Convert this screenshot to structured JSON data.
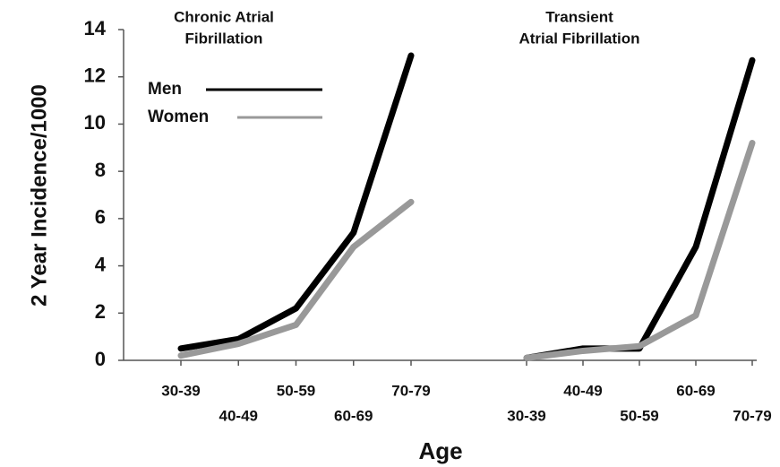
{
  "axis_labels": {
    "y": "2 Year Incidence/1000",
    "x": "Age"
  },
  "chart_data": [
    {
      "type": "line",
      "title": [
        "Chronic Atrial",
        "Fibrillation"
      ],
      "categories": [
        "30-39",
        "40-49",
        "50-59",
        "60-69",
        "70-79"
      ],
      "series": [
        {
          "name": "Men",
          "color": "#000000",
          "values": [
            0.5,
            0.9,
            2.2,
            5.4,
            12.9
          ]
        },
        {
          "name": "Women",
          "color": "#999999",
          "values": [
            0.2,
            0.7,
            1.5,
            4.8,
            6.7
          ]
        }
      ],
      "ylim": [
        0,
        14
      ],
      "yticks": [
        0,
        2,
        4,
        6,
        8,
        10,
        12,
        14
      ]
    },
    {
      "type": "line",
      "title": [
        "Transient",
        "Atrial Fibrillation"
      ],
      "categories": [
        "30-39",
        "40-49",
        "50-59",
        "60-69",
        "70-79"
      ],
      "series": [
        {
          "color": "#000000",
          "values": [
            0.1,
            0.5,
            0.5,
            4.8,
            12.7
          ]
        },
        {
          "color": "#999999",
          "values": [
            0.1,
            0.4,
            0.6,
            1.9,
            9.2
          ]
        }
      ],
      "ylim": [
        0,
        14
      ]
    }
  ]
}
